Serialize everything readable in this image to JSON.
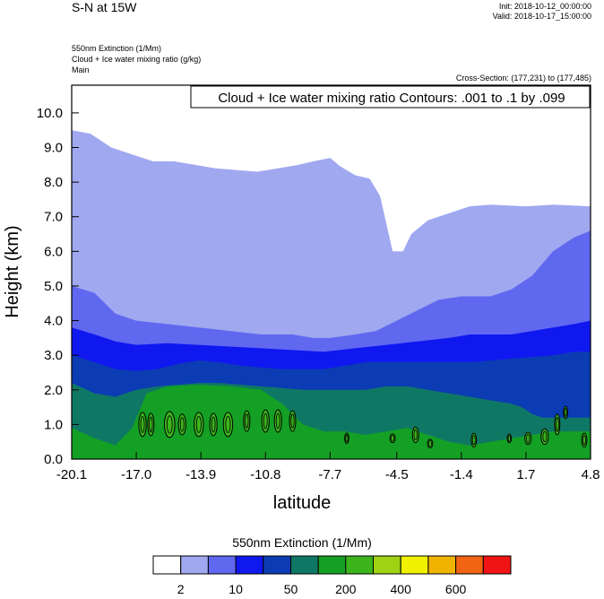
{
  "header": {
    "title": "S-N at 15W",
    "init": "Init: 2018-10-12_00:00:00",
    "valid": "Valid: 2018-10-17_15:00:00",
    "fields": [
      "550nm Extinction   (1/Mm)",
      "Cloud + Ice water mixing ratio   (g/kg)",
      "Main"
    ],
    "cross_section": "Cross-Section: (177,231) to (177,485)"
  },
  "chart_data": {
    "type": "heatmap",
    "title": "",
    "xlabel": "latitude",
    "ylabel": "Height (km)",
    "xlim": [
      -20.1,
      4.8
    ],
    "ylim": [
      0.0,
      10.8
    ],
    "x_ticks": [
      "-20.1",
      "-17.0",
      "-13.9",
      "-10.8",
      "-7.7",
      "-4.5",
      "-1.4",
      "1.7",
      "4.8"
    ],
    "x_tick_values": [
      -20.1,
      -17.0,
      -13.9,
      -10.8,
      -7.7,
      -4.5,
      -1.4,
      1.7,
      4.8
    ],
    "y_ticks": [
      "0.0",
      "1.0",
      "2.0",
      "3.0",
      "4.0",
      "5.0",
      "6.0",
      "7.0",
      "8.0",
      "9.0",
      "10.0"
    ],
    "y_tick_values": [
      0,
      1,
      2,
      3,
      4,
      5,
      6,
      7,
      8,
      9,
      10
    ],
    "contour_annotation": "Cloud + Ice water mixing ratio Contours: .001 to .1 by .099",
    "colorbar": {
      "title": "550nm Extinction  (1/Mm)",
      "labels": [
        "2",
        "10",
        "50",
        "200",
        "400",
        "600"
      ],
      "colors": [
        "#ffffff",
        "#a0a8f0",
        "#6068f0",
        "#1018f0",
        "#0c3cb4",
        "#0f7864",
        "#14a024",
        "#3cb41c",
        "#a0d214",
        "#f0f000",
        "#f0b400",
        "#f06414",
        "#f01414"
      ]
    },
    "layers": [
      {
        "level": "2-10",
        "color": "#a0a8f0",
        "top": [
          [
            -20.1,
            9.5
          ],
          [
            -19.2,
            9.4
          ],
          [
            -18.2,
            9.0
          ],
          [
            -17.2,
            8.8
          ],
          [
            -16.2,
            8.6
          ],
          [
            -15.2,
            8.6
          ],
          [
            -14.2,
            8.5
          ],
          [
            -13.2,
            8.4
          ],
          [
            -12.2,
            8.35
          ],
          [
            -11.2,
            8.3
          ],
          [
            -10.2,
            8.4
          ],
          [
            -9.2,
            8.5
          ],
          [
            -8.5,
            8.6
          ],
          [
            -7.7,
            8.7
          ],
          [
            -7.2,
            8.45
          ],
          [
            -6.5,
            8.2
          ],
          [
            -5.8,
            8.1
          ],
          [
            -5.3,
            7.6
          ],
          [
            -5.0,
            6.8
          ],
          [
            -4.7,
            6.0
          ],
          [
            -4.2,
            6.0
          ],
          [
            -3.8,
            6.5
          ],
          [
            -3.0,
            6.9
          ],
          [
            -2.0,
            7.1
          ],
          [
            -1.0,
            7.3
          ],
          [
            0.0,
            7.35
          ],
          [
            1.7,
            7.3
          ],
          [
            3.0,
            7.35
          ],
          [
            4.8,
            7.3
          ]
        ]
      },
      {
        "level": "10-50",
        "color": "#6068f0",
        "top": [
          [
            -20.1,
            5.0
          ],
          [
            -19.0,
            4.8
          ],
          [
            -18.0,
            4.2
          ],
          [
            -17.0,
            4.0
          ],
          [
            -15.5,
            3.9
          ],
          [
            -14.0,
            3.8
          ],
          [
            -12.5,
            3.7
          ],
          [
            -11.0,
            3.6
          ],
          [
            -9.5,
            3.6
          ],
          [
            -8.5,
            3.5
          ],
          [
            -7.7,
            3.5
          ],
          [
            -6.5,
            3.6
          ],
          [
            -5.5,
            3.7
          ],
          [
            -4.5,
            4.0
          ],
          [
            -3.5,
            4.3
          ],
          [
            -2.5,
            4.6
          ],
          [
            -1.4,
            4.7
          ],
          [
            0.0,
            4.7
          ],
          [
            1.0,
            4.9
          ],
          [
            2.0,
            5.3
          ],
          [
            3.0,
            6.0
          ],
          [
            4.0,
            6.4
          ],
          [
            4.8,
            6.6
          ]
        ]
      },
      {
        "level": "50-200",
        "color": "#1018f0",
        "top": [
          [
            -20.1,
            3.8
          ],
          [
            -19.0,
            3.6
          ],
          [
            -18.0,
            3.4
          ],
          [
            -17.0,
            3.3
          ],
          [
            -15.5,
            3.35
          ],
          [
            -14.0,
            3.3
          ],
          [
            -12.5,
            3.25
          ],
          [
            -11.0,
            3.2
          ],
          [
            -9.5,
            3.15
          ],
          [
            -8.0,
            3.1
          ],
          [
            -6.5,
            3.2
          ],
          [
            -5.0,
            3.3
          ],
          [
            -3.5,
            3.4
          ],
          [
            -2.0,
            3.5
          ],
          [
            -1.0,
            3.6
          ],
          [
            0.0,
            3.6
          ],
          [
            1.0,
            3.6
          ],
          [
            2.0,
            3.7
          ],
          [
            3.0,
            3.8
          ],
          [
            4.0,
            3.9
          ],
          [
            4.8,
            4.0
          ]
        ]
      },
      {
        "level": "200-400",
        "color": "#0c3cb4",
        "top": [
          [
            -20.1,
            3.0
          ],
          [
            -19.0,
            2.8
          ],
          [
            -18.0,
            2.6
          ],
          [
            -17.0,
            2.55
          ],
          [
            -16.0,
            2.6
          ],
          [
            -15.0,
            2.75
          ],
          [
            -14.0,
            2.85
          ],
          [
            -13.0,
            2.8
          ],
          [
            -12.0,
            2.7
          ],
          [
            -11.0,
            2.65
          ],
          [
            -10.0,
            2.6
          ],
          [
            -9.0,
            2.6
          ],
          [
            -8.0,
            2.6
          ],
          [
            -7.0,
            2.7
          ],
          [
            -6.0,
            2.8
          ],
          [
            -5.0,
            2.8
          ],
          [
            -4.0,
            2.8
          ],
          [
            -3.0,
            2.8
          ],
          [
            -2.0,
            2.8
          ],
          [
            -1.0,
            2.8
          ],
          [
            0.0,
            2.85
          ],
          [
            1.0,
            2.9
          ],
          [
            2.0,
            2.95
          ],
          [
            3.0,
            3.0
          ],
          [
            4.0,
            3.1
          ],
          [
            4.8,
            3.1
          ]
        ]
      },
      {
        "level": "400-600",
        "color": "#0f7864",
        "top": [
          [
            -20.1,
            2.2
          ],
          [
            -19.0,
            1.9
          ],
          [
            -18.0,
            1.8
          ],
          [
            -17.0,
            2.0
          ],
          [
            -16.0,
            2.1
          ],
          [
            -15.0,
            2.15
          ],
          [
            -14.0,
            2.2
          ],
          [
            -13.0,
            2.2
          ],
          [
            -12.0,
            2.15
          ],
          [
            -11.0,
            2.1
          ],
          [
            -10.0,
            2.05
          ],
          [
            -9.0,
            2.0
          ],
          [
            -8.0,
            2.0
          ],
          [
            -7.0,
            2.0
          ],
          [
            -6.0,
            2.0
          ],
          [
            -5.0,
            2.1
          ],
          [
            -4.0,
            2.1
          ],
          [
            -3.0,
            2.0
          ],
          [
            -2.0,
            1.9
          ],
          [
            -1.0,
            1.8
          ],
          [
            0.0,
            1.7
          ],
          [
            1.0,
            1.6
          ],
          [
            1.5,
            1.5
          ],
          [
            2.0,
            1.3
          ],
          [
            2.5,
            1.2
          ],
          [
            3.5,
            1.2
          ],
          [
            4.8,
            1.2
          ]
        ]
      },
      {
        "level": "600+",
        "color": "#14a024",
        "top": [
          [
            -20.1,
            0.9
          ],
          [
            -19.0,
            0.6
          ],
          [
            -18.0,
            0.4
          ],
          [
            -17.2,
            0.9
          ],
          [
            -16.5,
            1.9
          ],
          [
            -15.5,
            2.1
          ],
          [
            -14.0,
            2.15
          ],
          [
            -12.5,
            2.1
          ],
          [
            -11.0,
            2.0
          ],
          [
            -10.0,
            1.6
          ],
          [
            -9.0,
            1.0
          ],
          [
            -8.0,
            0.8
          ],
          [
            -7.0,
            0.8
          ],
          [
            -6.0,
            0.7
          ],
          [
            -5.0,
            0.8
          ],
          [
            -4.0,
            0.9
          ],
          [
            -3.0,
            0.7
          ],
          [
            -2.0,
            0.5
          ],
          [
            -1.0,
            0.4
          ],
          [
            0.0,
            0.5
          ],
          [
            1.0,
            0.6
          ],
          [
            2.0,
            0.7
          ],
          [
            3.0,
            0.8
          ],
          [
            4.0,
            0.8
          ],
          [
            4.8,
            0.8
          ]
        ]
      }
    ],
    "contours": [
      {
        "x": -16.7,
        "y": 1.0,
        "w": 0.35,
        "h": 0.7
      },
      {
        "x": -16.3,
        "y": 1.0,
        "w": 0.3,
        "h": 0.65
      },
      {
        "x": -15.4,
        "y": 1.0,
        "w": 0.5,
        "h": 0.75
      },
      {
        "x": -14.8,
        "y": 1.0,
        "w": 0.35,
        "h": 0.6
      },
      {
        "x": -14.0,
        "y": 1.0,
        "w": 0.45,
        "h": 0.7
      },
      {
        "x": -13.3,
        "y": 1.0,
        "w": 0.35,
        "h": 0.65
      },
      {
        "x": -12.6,
        "y": 1.0,
        "w": 0.45,
        "h": 0.7
      },
      {
        "x": -11.7,
        "y": 1.1,
        "w": 0.3,
        "h": 0.6
      },
      {
        "x": -10.8,
        "y": 1.1,
        "w": 0.35,
        "h": 0.65
      },
      {
        "x": -10.2,
        "y": 1.1,
        "w": 0.35,
        "h": 0.65
      },
      {
        "x": -9.5,
        "y": 1.1,
        "w": 0.3,
        "h": 0.6
      },
      {
        "x": -6.9,
        "y": 0.6,
        "w": 0.2,
        "h": 0.3
      },
      {
        "x": -4.7,
        "y": 0.6,
        "w": 0.25,
        "h": 0.25
      },
      {
        "x": -3.6,
        "y": 0.7,
        "w": 0.3,
        "h": 0.45
      },
      {
        "x": -2.9,
        "y": 0.45,
        "w": 0.25,
        "h": 0.25
      },
      {
        "x": -0.8,
        "y": 0.55,
        "w": 0.25,
        "h": 0.4
      },
      {
        "x": 0.9,
        "y": 0.6,
        "w": 0.2,
        "h": 0.25
      },
      {
        "x": 1.8,
        "y": 0.6,
        "w": 0.3,
        "h": 0.35
      },
      {
        "x": 2.6,
        "y": 0.65,
        "w": 0.35,
        "h": 0.45
      },
      {
        "x": 3.2,
        "y": 1.0,
        "w": 0.25,
        "h": 0.6
      },
      {
        "x": 3.6,
        "y": 1.35,
        "w": 0.2,
        "h": 0.35
      },
      {
        "x": 4.5,
        "y": 0.55,
        "w": 0.25,
        "h": 0.4
      }
    ]
  },
  "y_axis_label": "Height (km)",
  "x_axis_label": "latitude"
}
